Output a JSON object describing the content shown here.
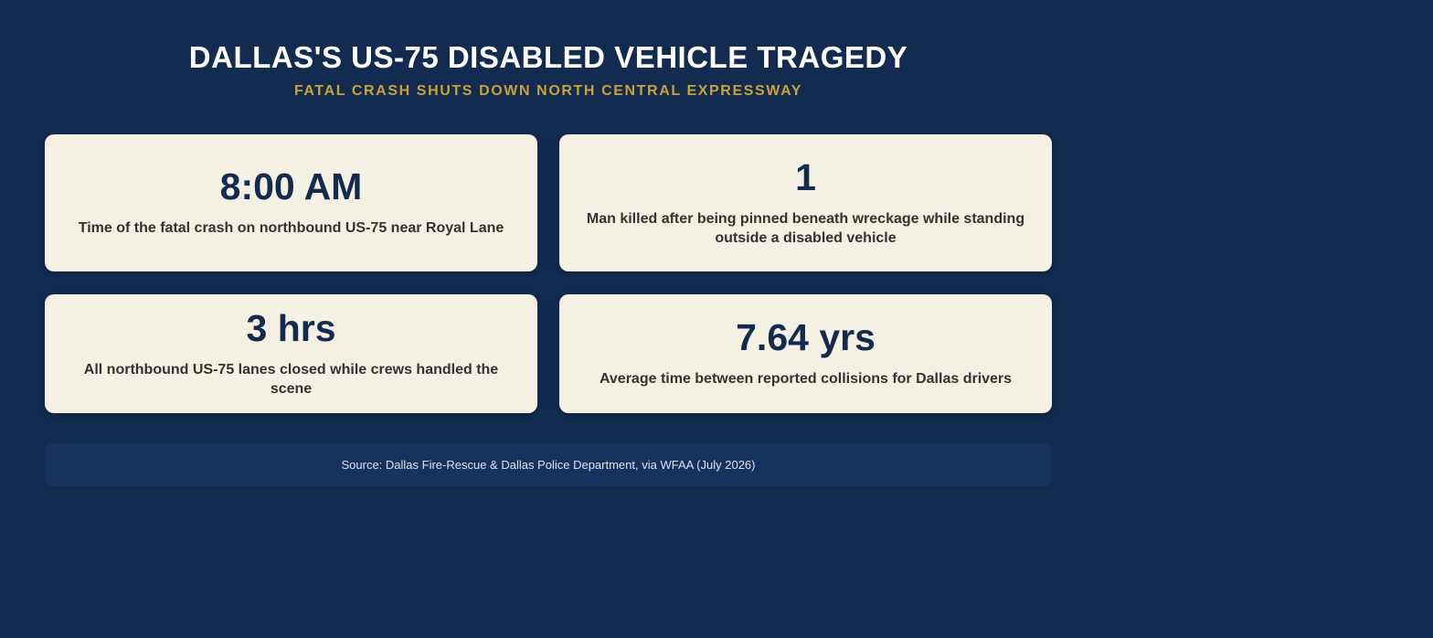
{
  "header": {
    "title": "DALLAS'S US-75 DISABLED VEHICLE TRAGEDY",
    "subtitle": "FATAL CRASH SHUTS DOWN NORTH CENTRAL EXPRESSWAY"
  },
  "stats": [
    {
      "value": "8:00 AM",
      "label": "Time of the fatal crash on northbound US-75 near Royal Lane"
    },
    {
      "value": "1",
      "label": "Man killed after being pinned beneath wreckage while standing outside a disabled vehicle"
    },
    {
      "value": "3 hrs",
      "label": "All northbound US-75 lanes closed while crews handled the scene"
    },
    {
      "value": "7.64 yrs",
      "label": "Average time between reported collisions for Dallas drivers"
    }
  ],
  "source": "Source: Dallas Fire-Rescue & Dallas Police Department, via WFAA (July 2026)"
}
